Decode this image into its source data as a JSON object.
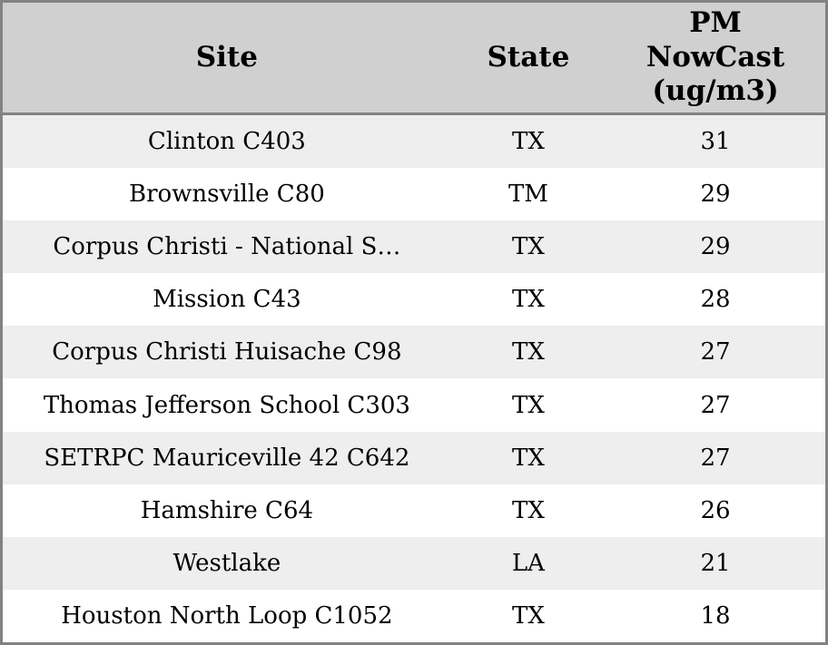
{
  "table": {
    "columns": [
      {
        "id": "site",
        "label": "Site"
      },
      {
        "id": "state",
        "label": "State"
      },
      {
        "id": "pm_nowcast",
        "label": "PM\nNowCast\n(ug/m3)"
      }
    ],
    "rows": [
      {
        "site": "Clinton C403",
        "state": "TX",
        "pm_nowcast": "31"
      },
      {
        "site": "Brownsville C80",
        "state": "TM",
        "pm_nowcast": "29"
      },
      {
        "site": "Corpus Christi - National S…",
        "state": "TX",
        "pm_nowcast": "29"
      },
      {
        "site": "Mission C43",
        "state": "TX",
        "pm_nowcast": "28"
      },
      {
        "site": "Corpus Christi Huisache C98",
        "state": "TX",
        "pm_nowcast": "27"
      },
      {
        "site": "Thomas Jefferson School C303",
        "state": "TX",
        "pm_nowcast": "27"
      },
      {
        "site": "SETRPC Mauriceville 42 C642",
        "state": "TX",
        "pm_nowcast": "27"
      },
      {
        "site": "Hamshire C64",
        "state": "TX",
        "pm_nowcast": "26"
      },
      {
        "site": "Westlake",
        "state": "LA",
        "pm_nowcast": "21"
      },
      {
        "site": "Houston North Loop C1052",
        "state": "TX",
        "pm_nowcast": "18"
      }
    ]
  },
  "colors": {
    "header_bg": "#d0d0d0",
    "border": "#828282",
    "row_stripe": "#eeeeee",
    "row_bg": "#ffffff",
    "text": "#000000"
  },
  "chart_data": {
    "type": "table",
    "title": "",
    "columns": [
      "Site",
      "State",
      "PM NowCast (ug/m3)"
    ],
    "categories": [
      "Clinton C403",
      "Brownsville C80",
      "Corpus Christi - National S…",
      "Mission C43",
      "Corpus Christi Huisache C98",
      "Thomas Jefferson School C303",
      "SETRPC Mauriceville 42 C642",
      "Hamshire C64",
      "Westlake",
      "Houston North Loop C1052"
    ],
    "states": [
      "TX",
      "TM",
      "TX",
      "TX",
      "TX",
      "TX",
      "TX",
      "TX",
      "LA",
      "TX"
    ],
    "values": [
      31,
      29,
      29,
      28,
      27,
      27,
      27,
      26,
      21,
      18
    ],
    "ylabel": "PM NowCast (ug/m3)"
  }
}
